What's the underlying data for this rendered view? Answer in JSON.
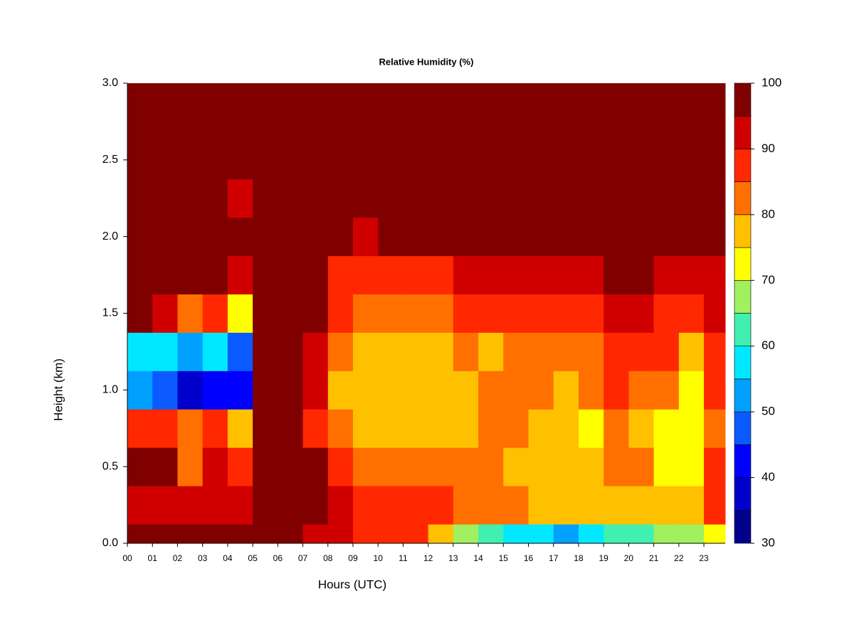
{
  "chart_data": {
    "type": "contour",
    "title": "Relative Humidity (%)",
    "xlabel": "Hours (UTC)",
    "ylabel": "Height (km)",
    "x": [
      0,
      1,
      2,
      3,
      4,
      5,
      6,
      7,
      8,
      9,
      10,
      11,
      12,
      13,
      14,
      15,
      16,
      17,
      18,
      19,
      20,
      21,
      22,
      23
    ],
    "y": [
      0,
      0.25,
      0.5,
      0.75,
      1.0,
      1.25,
      1.5,
      1.75,
      2.0,
      2.25,
      2.5,
      2.75,
      3.0
    ],
    "z": [
      [
        95,
        95,
        95,
        95,
        95,
        95,
        95,
        90,
        90,
        88,
        88,
        88,
        75,
        65,
        60,
        55,
        55,
        50,
        55,
        60,
        60,
        65,
        65,
        70
      ],
      [
        90,
        90,
        90,
        90,
        90,
        98,
        98,
        95,
        92,
        88,
        88,
        85,
        85,
        80,
        80,
        80,
        75,
        78,
        75,
        78,
        78,
        75,
        75,
        85
      ],
      [
        98,
        95,
        80,
        90,
        85,
        98,
        98,
        95,
        85,
        80,
        82,
        80,
        80,
        80,
        80,
        78,
        78,
        78,
        75,
        80,
        80,
        72,
        72,
        85
      ],
      [
        85,
        85,
        80,
        85,
        75,
        98,
        95,
        88,
        80,
        75,
        75,
        78,
        78,
        78,
        80,
        80,
        78,
        75,
        72,
        80,
        78,
        72,
        70,
        80
      ],
      [
        50,
        45,
        35,
        40,
        40,
        98,
        98,
        90,
        78,
        75,
        75,
        75,
        78,
        78,
        80,
        80,
        80,
        78,
        80,
        85,
        82,
        80,
        72,
        85
      ],
      [
        55,
        55,
        50,
        55,
        45,
        98,
        98,
        92,
        80,
        75,
        75,
        78,
        75,
        80,
        78,
        80,
        80,
        80,
        82,
        88,
        88,
        85,
        78,
        88
      ],
      [
        98,
        90,
        80,
        85,
        70,
        98,
        98,
        95,
        85,
        80,
        80,
        82,
        82,
        85,
        85,
        85,
        88,
        88,
        88,
        92,
        90,
        88,
        88,
        90
      ],
      [
        98,
        98,
        98,
        98,
        90,
        98,
        98,
        95,
        88,
        85,
        88,
        88,
        88,
        90,
        90,
        90,
        92,
        92,
        92,
        95,
        95,
        92,
        90,
        92
      ],
      [
        98,
        98,
        98,
        98,
        98,
        98,
        98,
        98,
        95,
        92,
        95,
        95,
        95,
        98,
        98,
        98,
        98,
        98,
        98,
        98,
        98,
        98,
        98,
        98
      ],
      [
        98,
        98,
        98,
        98,
        90,
        98,
        98,
        98,
        98,
        98,
        98,
        98,
        98,
        98,
        98,
        98,
        98,
        98,
        98,
        98,
        98,
        98,
        98,
        98
      ],
      [
        98,
        98,
        98,
        98,
        95,
        98,
        98,
        98,
        98,
        98,
        98,
        98,
        98,
        98,
        98,
        98,
        98,
        98,
        98,
        98,
        98,
        98,
        98,
        98
      ],
      [
        98,
        98,
        98,
        98,
        98,
        98,
        98,
        98,
        98,
        98,
        98,
        98,
        98,
        98,
        98,
        98,
        98,
        98,
        98,
        98,
        98,
        98,
        98,
        98
      ],
      [
        98,
        98,
        98,
        98,
        98,
        98,
        98,
        98,
        98,
        98,
        98,
        98,
        98,
        98,
        98,
        98,
        98,
        98,
        98,
        98,
        98,
        98,
        98,
        98
      ]
    ],
    "xlim": [
      0,
      23.85
    ],
    "ylim": [
      0,
      3.0
    ],
    "xticks": [
      {
        "value": 0,
        "label": "00"
      },
      {
        "value": 1,
        "label": "01"
      },
      {
        "value": 2,
        "label": "02"
      },
      {
        "value": 3,
        "label": "03"
      },
      {
        "value": 4,
        "label": "04"
      },
      {
        "value": 5,
        "label": "05"
      },
      {
        "value": 6,
        "label": "06"
      },
      {
        "value": 7,
        "label": "07"
      },
      {
        "value": 8,
        "label": "08"
      },
      {
        "value": 9,
        "label": "09"
      },
      {
        "value": 10,
        "label": "10"
      },
      {
        "value": 11,
        "label": "11"
      },
      {
        "value": 12,
        "label": "12"
      },
      {
        "value": 13,
        "label": "13"
      },
      {
        "value": 14,
        "label": "14"
      },
      {
        "value": 15,
        "label": "15"
      },
      {
        "value": 16,
        "label": "16"
      },
      {
        "value": 17,
        "label": "17"
      },
      {
        "value": 18,
        "label": "18"
      },
      {
        "value": 19,
        "label": "19"
      },
      {
        "value": 20,
        "label": "20"
      },
      {
        "value": 21,
        "label": "21"
      },
      {
        "value": 22,
        "label": "22"
      },
      {
        "value": 23,
        "label": "23"
      }
    ],
    "yticks": [
      {
        "value": 0,
        "label": "0.0"
      },
      0.5,
      {
        "value": 1,
        "label": "1.0"
      },
      1.5,
      {
        "value": 2,
        "label": "2.0"
      },
      2.5,
      {
        "value": 3,
        "label": "3.0"
      }
    ],
    "levels": [
      30,
      35,
      40,
      45,
      50,
      55,
      60,
      65,
      70,
      75,
      80,
      85,
      90,
      95,
      100
    ],
    "colors": [
      "#00008b",
      "#0000cd",
      "#0000ff",
      "#0a5aff",
      "#00a0ff",
      "#00e8ff",
      "#40f0b0",
      "#a0f060",
      "#ffff00",
      "#ffc000",
      "#ff7000",
      "#ff2800",
      "#d00000",
      "#800000"
    ],
    "colorbar_ticks": [
      30,
      40,
      50,
      60,
      70,
      80,
      90,
      100
    ]
  }
}
